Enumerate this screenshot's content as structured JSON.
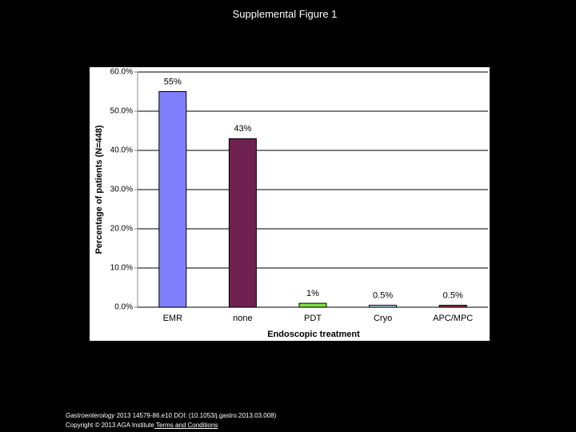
{
  "slide_title": "Supplemental Figure 1",
  "chart_data": {
    "type": "bar",
    "y_label": "Percentage of patients (N=448)",
    "x_label": "Endoscopic treatment",
    "categories": [
      "EMR",
      "none",
      "PDT",
      "Cryo",
      "APC/MPC"
    ],
    "values": [
      55,
      43,
      1,
      0.5,
      0.5
    ],
    "value_labels": [
      "55%",
      "43%",
      "1%",
      "0.5%",
      "0.5%"
    ],
    "colors": [
      "#8080ff",
      "#6e2150",
      "#80e040",
      "#a8e0f8",
      "#9a3030"
    ],
    "ylim": [
      0,
      60
    ],
    "yticks": [
      {
        "value": 0,
        "label": "0.0%"
      },
      {
        "value": 10,
        "label": "10.0%"
      },
      {
        "value": 20,
        "label": "20.0%"
      },
      {
        "value": 30,
        "label": "30.0%"
      },
      {
        "value": 40,
        "label": "40.0%"
      },
      {
        "value": 50,
        "label": "50.0%"
      },
      {
        "value": 60,
        "label": "60.0%"
      }
    ],
    "grid": true
  },
  "footer": {
    "journal": "Gastroenterology",
    "citation": " 2013 14579-86.e10 DOI: (10.1053/j.gastro.2013.03.008)",
    "copyright": "Copyright © 2013 AGA Institute",
    "link": " Terms and Conditions"
  }
}
